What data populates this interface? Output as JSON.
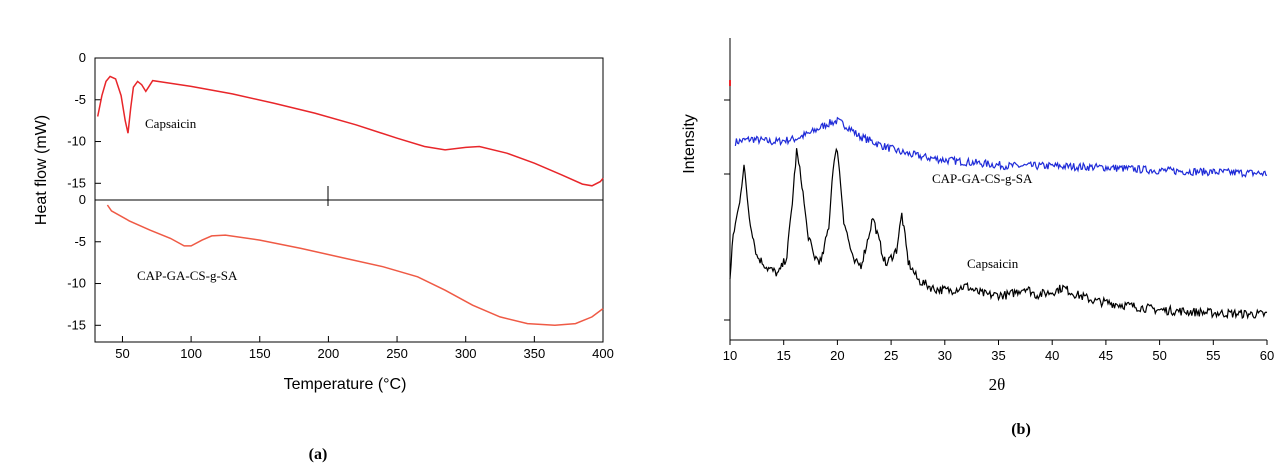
{
  "chart_data": [
    {
      "panel_label": "(a)",
      "type": "line",
      "xlabel": "Temperature (°C)",
      "ylabel": "Heat flow (mW)",
      "xlim": [
        30,
        400
      ],
      "x_ticks": [
        50,
        100,
        150,
        200,
        250,
        300,
        350,
        400
      ],
      "subplots": [
        {
          "ylim": [
            -17,
            0
          ],
          "y_ticks": [
            0,
            -5,
            -10,
            -15
          ],
          "series": [
            {
              "name": "Capsaicin",
              "color": "#e8262a",
              "points": [
                [
                  32,
                  -7
                ],
                [
                  35,
                  -4.5
                ],
                [
                  38,
                  -2.8
                ],
                [
                  41,
                  -2.2
                ],
                [
                  45,
                  -2.5
                ],
                [
                  49,
                  -4.5
                ],
                [
                  52,
                  -7.5
                ],
                [
                  54,
                  -9
                ],
                [
                  56,
                  -6
                ],
                [
                  58,
                  -3.5
                ],
                [
                  61,
                  -2.8
                ],
                [
                  64,
                  -3.2
                ],
                [
                  67,
                  -4
                ],
                [
                  69,
                  -3.5
                ],
                [
                  72,
                  -2.7
                ],
                [
                  80,
                  -2.9
                ],
                [
                  100,
                  -3.4
                ],
                [
                  130,
                  -4.3
                ],
                [
                  160,
                  -5.4
                ],
                [
                  190,
                  -6.6
                ],
                [
                  220,
                  -8
                ],
                [
                  250,
                  -9.6
                ],
                [
                  270,
                  -10.6
                ],
                [
                  285,
                  -11
                ],
                [
                  300,
                  -10.7
                ],
                [
                  310,
                  -10.6
                ],
                [
                  330,
                  -11.4
                ],
                [
                  350,
                  -12.6
                ],
                [
                  370,
                  -14
                ],
                [
                  385,
                  -15.1
                ],
                [
                  392,
                  -15.3
                ],
                [
                  398,
                  -14.8
                ],
                [
                  400,
                  -14.4
                ]
              ]
            }
          ]
        },
        {
          "ylim": [
            -17,
            0
          ],
          "y_ticks": [
            0,
            -5,
            -10,
            -15
          ],
          "series": [
            {
              "name": "CAP-GA-CS-g-SA",
              "color": "#ef5a45",
              "points": [
                [
                  39,
                  -0.6
                ],
                [
                  42,
                  -1.3
                ],
                [
                  55,
                  -2.5
                ],
                [
                  70,
                  -3.6
                ],
                [
                  85,
                  -4.6
                ],
                [
                  95,
                  -5.5
                ],
                [
                  100,
                  -5.5
                ],
                [
                  108,
                  -4.8
                ],
                [
                  115,
                  -4.3
                ],
                [
                  125,
                  -4.2
                ],
                [
                  150,
                  -4.8
                ],
                [
                  180,
                  -5.8
                ],
                [
                  210,
                  -6.9
                ],
                [
                  240,
                  -8
                ],
                [
                  265,
                  -9.2
                ],
                [
                  285,
                  -10.8
                ],
                [
                  305,
                  -12.6
                ],
                [
                  325,
                  -14
                ],
                [
                  345,
                  -14.8
                ],
                [
                  365,
                  -15
                ],
                [
                  380,
                  -14.8
                ],
                [
                  392,
                  -14
                ],
                [
                  400,
                  -13
                ]
              ]
            }
          ]
        }
      ]
    },
    {
      "panel_label": "(b)",
      "type": "line",
      "xlabel": "2θ",
      "ylabel": "Intensity",
      "xlim": [
        10,
        60
      ],
      "x_ticks": [
        10,
        15,
        20,
        25,
        30,
        35,
        40,
        45,
        50,
        55,
        60
      ],
      "ylim": [
        0,
        100
      ],
      "series": [
        {
          "name": "CAP-GA-CS-g-SA",
          "color": "#1f2bd8",
          "points": [
            [
              10.5,
              66
            ],
            [
              12,
              67
            ],
            [
              14,
              66
            ],
            [
              16,
              67
            ],
            [
              17.5,
              69
            ],
            [
              19,
              72
            ],
            [
              20,
              73
            ],
            [
              21,
              71
            ],
            [
              22,
              68
            ],
            [
              24,
              65
            ],
            [
              26,
              62.5
            ],
            [
              28,
              61
            ],
            [
              30,
              60
            ],
            [
              33,
              59
            ],
            [
              36,
              58
            ],
            [
              40,
              58
            ],
            [
              45,
              57.5
            ],
            [
              50,
              56.5
            ],
            [
              55,
              56
            ],
            [
              60,
              55.5
            ]
          ]
        },
        {
          "name": "Capsaicin",
          "color": "#000000",
          "points": [
            [
              10,
              20
            ],
            [
              10.3,
              35
            ],
            [
              10.8,
              44
            ],
            [
              11.3,
              58
            ],
            [
              11.8,
              41
            ],
            [
              12.5,
              28
            ],
            [
              13.5,
              24
            ],
            [
              14.5,
              22
            ],
            [
              15.3,
              28
            ],
            [
              15.8,
              46
            ],
            [
              16.2,
              63
            ],
            [
              16.7,
              52
            ],
            [
              17.2,
              36
            ],
            [
              17.8,
              28
            ],
            [
              18.5,
              26
            ],
            [
              19.2,
              38
            ],
            [
              19.6,
              58
            ],
            [
              20,
              64
            ],
            [
              20.6,
              40
            ],
            [
              21.5,
              26
            ],
            [
              22.2,
              25
            ],
            [
              22.8,
              33
            ],
            [
              23.3,
              41
            ],
            [
              23.8,
              34
            ],
            [
              24.5,
              25
            ],
            [
              25.5,
              30
            ],
            [
              26,
              42
            ],
            [
              26.6,
              26
            ],
            [
              27.5,
              20
            ],
            [
              29,
              17
            ],
            [
              30.5,
              16.5
            ],
            [
              32,
              18
            ],
            [
              33,
              16
            ],
            [
              34,
              15
            ],
            [
              36,
              15
            ],
            [
              37.5,
              17.5
            ],
            [
              38.5,
              15
            ],
            [
              40,
              16
            ],
            [
              41,
              17.5
            ],
            [
              42,
              15.5
            ],
            [
              44,
              13
            ],
            [
              46,
              12
            ],
            [
              50,
              10
            ],
            [
              55,
              9
            ],
            [
              60,
              8.5
            ]
          ]
        }
      ]
    }
  ]
}
